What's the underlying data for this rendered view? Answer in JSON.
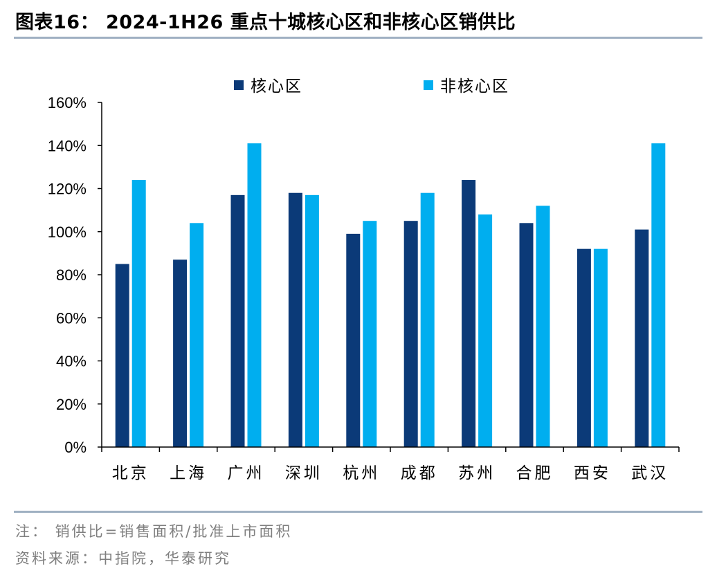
{
  "header": {
    "title": "图表16：  2024-1H26 重点十城核心区和非核心区销供比"
  },
  "footer": {
    "note": "注： 销供比=销售面积/批准上市面积",
    "source": "资料来源：中指院，华泰研究"
  },
  "chart_data": {
    "type": "bar",
    "title": "",
    "xlabel": "",
    "ylabel": "",
    "categories": [
      "北京",
      "上海",
      "广州",
      "深圳",
      "杭州",
      "成都",
      "苏州",
      "合肥",
      "西安",
      "武汉"
    ],
    "series": [
      {
        "name": "核心区",
        "color": "#0b3a78",
        "values": [
          85,
          87,
          117,
          118,
          99,
          105,
          124,
          104,
          92,
          101
        ]
      },
      {
        "name": "非核心区",
        "color": "#00aeef",
        "values": [
          124,
          104,
          141,
          117,
          105,
          118,
          108,
          112,
          92,
          141
        ]
      }
    ],
    "ylim": [
      0,
      160
    ],
    "yticks": [
      0,
      20,
      40,
      60,
      80,
      100,
      120,
      140,
      160
    ],
    "ytick_labels": [
      "0%",
      "20%",
      "40%",
      "60%",
      "80%",
      "100%",
      "120%",
      "140%",
      "160%"
    ],
    "grid": false,
    "legend_position": "top"
  }
}
